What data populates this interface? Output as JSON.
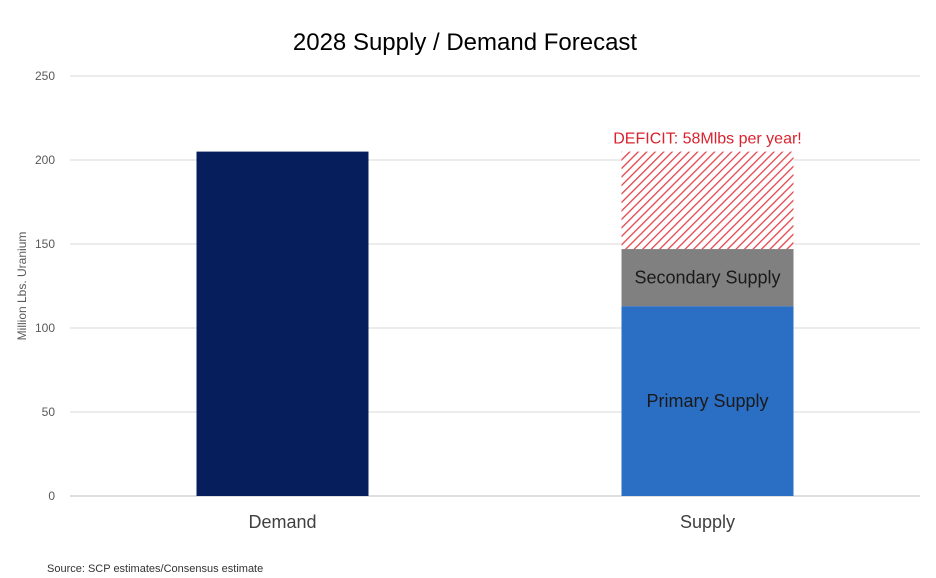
{
  "chart_data": {
    "type": "bar",
    "stacked": true,
    "title": "2028 Supply / Demand Forecast",
    "xlabel": "",
    "ylabel": "Million  Lbs. Uranium",
    "ylim": [
      0,
      250
    ],
    "yticks": [
      0,
      50,
      100,
      150,
      200,
      250
    ],
    "grid": true,
    "categories": [
      "Demand",
      "Supply"
    ],
    "bars": [
      {
        "category": "Demand",
        "segments": [
          {
            "label": "",
            "value": 205,
            "color": "#061F5C",
            "pattern": "solid"
          }
        ]
      },
      {
        "category": "Supply",
        "segments": [
          {
            "label": "Primary Supply",
            "value": 113,
            "color": "#2B6FC4",
            "pattern": "solid"
          },
          {
            "label": "Secondary Supply",
            "value": 34,
            "color": "#808080",
            "pattern": "solid"
          },
          {
            "label": "",
            "value": 58,
            "color": "#E3434C",
            "pattern": "hatch"
          }
        ]
      }
    ],
    "annotation": {
      "text": "DEFICIT:  58Mlbs per year!",
      "color": "#D9232E"
    },
    "source": "Source: SCP estimates/Consensus estimate"
  }
}
